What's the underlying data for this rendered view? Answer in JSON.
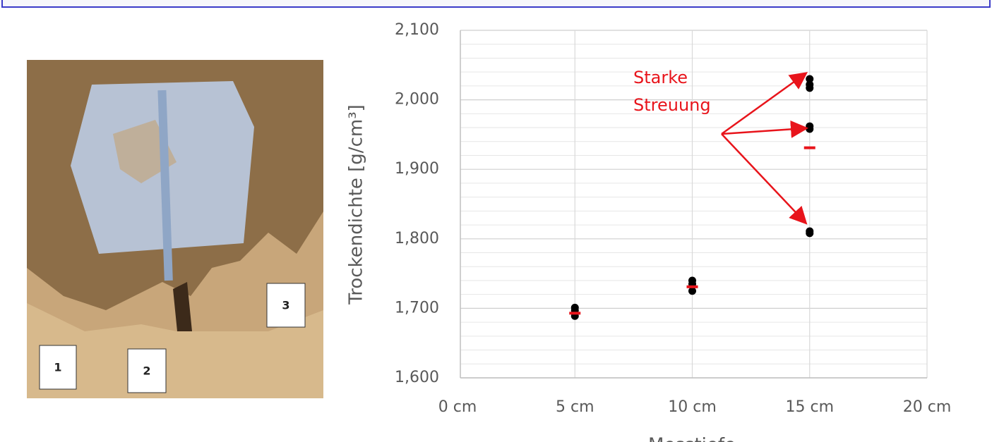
{
  "photo_labels": [
    "1",
    "2",
    "3"
  ],
  "chart_data": {
    "type": "scatter",
    "ylabel": "Trockendichte [g/cm³]",
    "xlabel": "Messtiefe",
    "annotation": [
      "Starke",
      "Streuung"
    ],
    "xlim": [
      0,
      20
    ],
    "xticks": [
      {
        "value": 0,
        "label": "0 cm"
      },
      {
        "value": 5,
        "label": "5 cm"
      },
      {
        "value": 10,
        "label": "10 cm"
      },
      {
        "value": 15,
        "label": "15 cm"
      },
      {
        "value": 20,
        "label": "20 cm"
      }
    ],
    "ylim": [
      1600,
      2100
    ],
    "yticks": [
      {
        "value": 1600,
        "label": "1,600"
      },
      {
        "value": 1700,
        "label": "1,700"
      },
      {
        "value": 1800,
        "label": "1,800"
      },
      {
        "value": 1900,
        "label": "1,900"
      },
      {
        "value": 2000,
        "label": "2,000"
      },
      {
        "value": 2100,
        "label": "2,100"
      }
    ],
    "yminor": [
      1620,
      1640,
      1660,
      1680,
      1720,
      1740,
      1760,
      1780,
      1820,
      1840,
      1860,
      1880,
      1920,
      1940,
      1960,
      1980,
      2020,
      2040,
      2060,
      2080
    ],
    "grid": true,
    "series": [
      {
        "color": "#000000",
        "marker": "circle",
        "x": [
          5,
          5,
          5,
          10,
          10,
          10,
          15,
          15,
          15,
          15,
          15,
          15,
          15
        ],
        "values": [
          1701,
          1697,
          1689,
          1740,
          1735,
          1725,
          2030,
          2022,
          2017,
          1962,
          1958,
          1811,
          1808
        ]
      },
      {
        "color": "#e8141b",
        "marker": "dash",
        "x": [
          5,
          10,
          15
        ],
        "values": [
          1693,
          1731,
          1931
        ]
      }
    ]
  }
}
